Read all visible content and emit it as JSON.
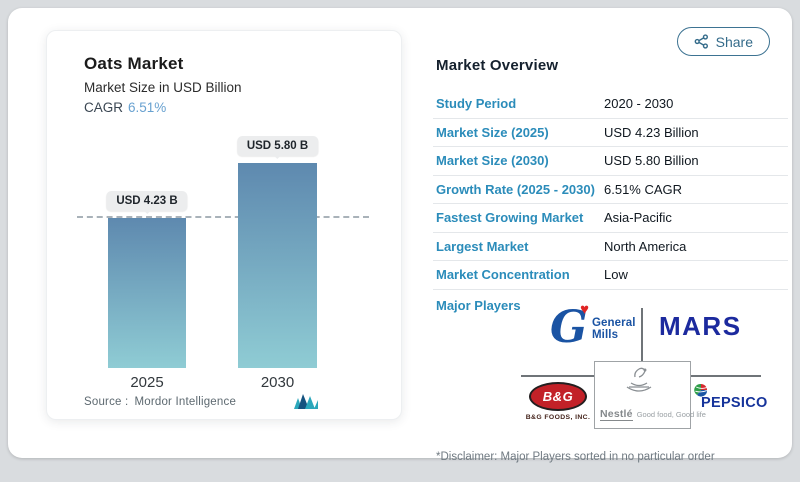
{
  "share": {
    "label": "Share"
  },
  "chart_panel": {
    "title": "Oats Market",
    "subtitle": "Market Size in USD Billion",
    "cagr_label": "CAGR",
    "cagr_value": "6.51%",
    "source_label": "Source :",
    "source_value": "Mordor Intelligence"
  },
  "chart_data": {
    "type": "bar",
    "categories": [
      "2025",
      "2030"
    ],
    "values": [
      4.23,
      5.8
    ],
    "bar_labels": [
      "USD 4.23 B",
      "USD 5.80 B"
    ],
    "title": "Oats Market",
    "subtitle": "Market Size in USD Billion",
    "unit": "USD Billion",
    "cagr_percent": 6.51,
    "ylim": [
      0,
      5.8
    ],
    "reference_line": 4.23,
    "grid": false,
    "legend": false,
    "bar_color_top": "#5e89af",
    "bar_color_bottom": "#8fccd4"
  },
  "overview": {
    "title": "Market Overview",
    "rows": [
      {
        "label": "Study Period",
        "value": "2020 - 2030"
      },
      {
        "label": "Market Size (2025)",
        "value": "USD 4.23 Billion"
      },
      {
        "label": "Market Size (2030)",
        "value": "USD 5.80 Billion"
      },
      {
        "label": "Growth Rate (2025 - 2030)",
        "value": "6.51% CAGR"
      },
      {
        "label": "Fastest Growing Market",
        "value": "Asia-Pacific"
      },
      {
        "label": "Largest Market",
        "value": "North America"
      },
      {
        "label": "Market Concentration",
        "value": "Low"
      }
    ],
    "major_players_label": "Major Players",
    "disclaimer": "*Disclaimer: Major Players sorted in no particular order"
  },
  "players": {
    "general_mills": {
      "name": "General Mills",
      "monogram": "G",
      "line1": "General",
      "line2": "Mills"
    },
    "mars": {
      "name": "Mars",
      "wordmark": "MARS"
    },
    "bg_foods": {
      "name": "B&G Foods, Inc.",
      "oval_text": "B&G",
      "caption": "B&G Foods, Inc."
    },
    "nestle": {
      "name": "Nestlé",
      "wordmark": "Nestlé",
      "tagline": "Good food, Good life"
    },
    "pepsico": {
      "name": "PepsiCo",
      "wordmark": "PEPSICO"
    }
  },
  "colors": {
    "accent_blue": "#2b8cba",
    "cagr_blue": "#68a1d0",
    "mars_blue": "#1c2a9e",
    "general_mills_blue": "#1a53a3",
    "pepsico_blue": "#16349b",
    "bg_foods_red": "#c22128"
  }
}
